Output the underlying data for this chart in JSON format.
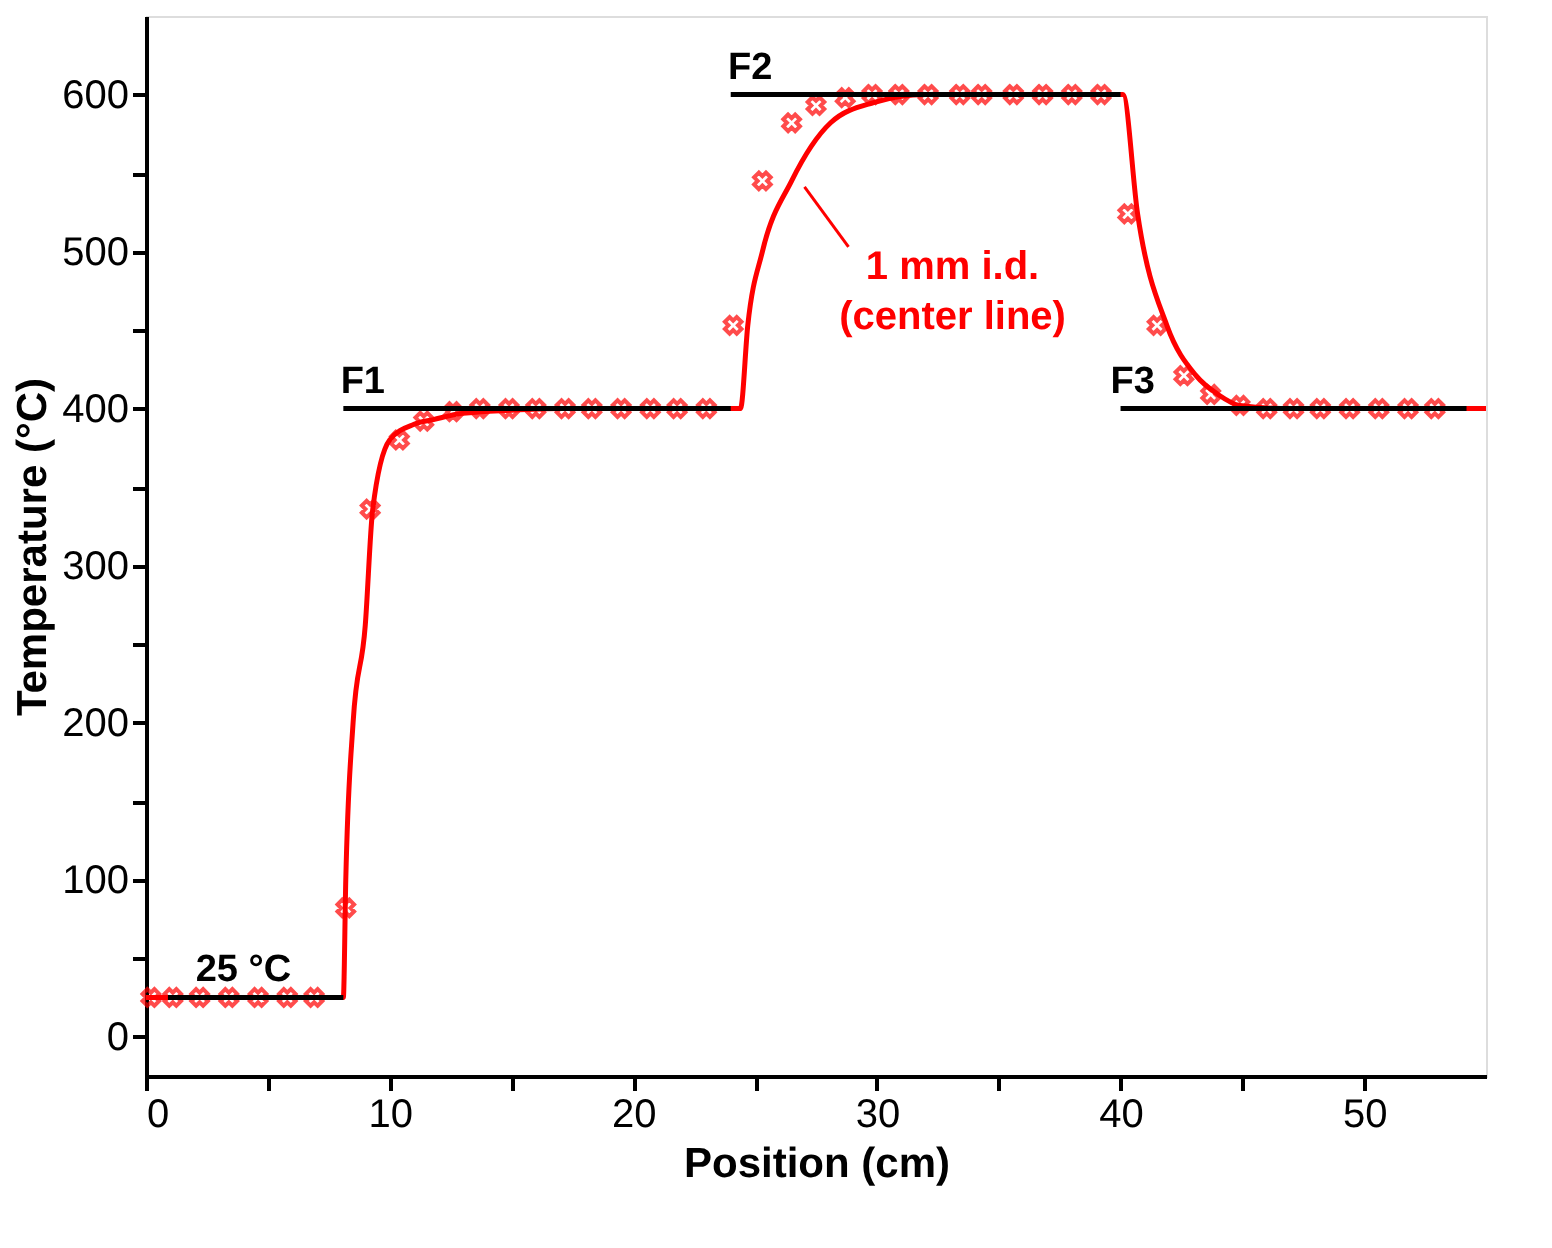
{
  "chart_data": {
    "type": "line",
    "xlabel": "Position (cm)",
    "ylabel": "Temperature (°C)",
    "xlim": [
      0,
      55
    ],
    "ylim": [
      -25,
      650
    ],
    "xticks": [
      0,
      {
        "value": 5,
        "label": null
      },
      10,
      {
        "value": 15,
        "label": null
      },
      20,
      {
        "value": 25,
        "label": null
      },
      30,
      {
        "value": 35,
        "label": null
      },
      40,
      {
        "value": 45,
        "label": null
      },
      50
    ],
    "yticks": [
      0,
      {
        "value": 50,
        "label": null
      },
      100,
      {
        "value": 150,
        "label": null
      },
      200,
      {
        "value": 250,
        "label": null
      },
      300,
      {
        "value": 350,
        "label": null
      },
      400,
      {
        "value": 450,
        "label": null
      },
      500,
      {
        "value": 550,
        "label": null
      },
      600
    ],
    "grid": false,
    "series": [
      {
        "color": "#000000",
        "line_style": "solid",
        "x": [
          0.9,
          8.1
        ],
        "values": [
          25,
          25
        ]
      },
      {
        "color": "#000000",
        "line_style": "solid",
        "x": [
          8.1,
          24
        ],
        "values": [
          400,
          400
        ]
      },
      {
        "color": "#000000",
        "line_style": "solid",
        "x": [
          24,
          40
        ],
        "values": [
          600,
          600
        ]
      },
      {
        "color": "#000000",
        "line_style": "solid",
        "x": [
          40,
          54.2
        ],
        "values": [
          400,
          400
        ]
      },
      {
        "color": "#ff0000",
        "line_style": "solid",
        "x": [
          0,
          8.1,
          8.2,
          8.5,
          9.0,
          9.3,
          10,
          11,
          11.8,
          13,
          15,
          17,
          24.4,
          24.7,
          25.3,
          26.5,
          28.1,
          29.9,
          32,
          40.1,
          40.7,
          41.9,
          43.1,
          44,
          44.9,
          47,
          55
        ],
        "values": [
          25,
          25,
          100,
          200,
          262,
          335,
          380,
          390,
          393,
          397,
          399,
          400,
          400,
          453,
          500,
          545,
          582,
          595,
          600,
          600,
          524,
          453,
          421,
          409,
          402,
          400,
          400
        ]
      },
      {
        "type": "scatter",
        "color": "#ff0000",
        "marker": "cross",
        "x": [
          0.2,
          1.1,
          2.2,
          3.4,
          4.6,
          5.8,
          6.9,
          8.2,
          9.2,
          10.4,
          11.4,
          12.6,
          13.7,
          14.9,
          16.0,
          17.2,
          18.3,
          19.5,
          20.7,
          21.8,
          23.0,
          24.1,
          25.3,
          26.5,
          27.5,
          28.7,
          29.8,
          30.9,
          32.1,
          33.4,
          34.3,
          35.6,
          36.8,
          38.0,
          39.2,
          40.3,
          41.5,
          42.6,
          43.7,
          44.9,
          46.0,
          47.1,
          48.2,
          49.4,
          50.6,
          51.8,
          52.9
        ],
        "values": [
          25,
          25,
          25,
          25,
          25,
          25,
          25,
          82,
          336,
          380,
          392,
          398,
          400,
          400,
          400,
          400,
          400,
          400,
          400,
          400,
          400,
          453,
          545,
          582,
          593,
          598,
          600,
          600,
          600,
          600,
          600,
          600,
          600,
          600,
          600,
          524,
          453,
          421,
          409,
          402,
          400,
          400,
          400,
          400,
          400,
          400,
          400
        ]
      }
    ],
    "annotations": [
      {
        "text": "25 °C",
        "x": 4,
        "y": 25
      },
      {
        "text": "F1",
        "x": 8.9,
        "y": 400
      },
      {
        "text": "F2",
        "x": 24.8,
        "y": 600
      },
      {
        "text": "F3",
        "x": 40.5,
        "y": 400
      },
      {
        "text": "1 mm i.d.\n(center line)",
        "x": 26.7,
        "y": 545
      }
    ]
  }
}
